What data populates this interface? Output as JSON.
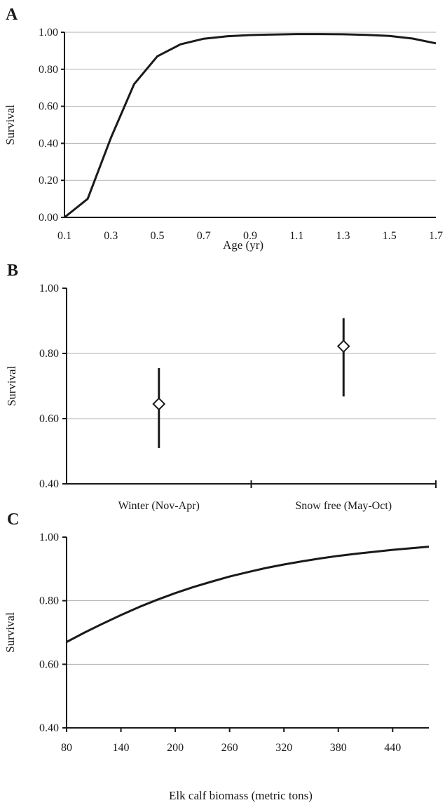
{
  "chart_data": [
    {
      "panel": "A",
      "type": "line",
      "xlabel": "Age (yr)",
      "ylabel": "Survival",
      "xlim": [
        0.1,
        1.7
      ],
      "ylim": [
        0,
        1
      ],
      "x_ticks": [
        "0.1",
        "0.3",
        "0.5",
        "0.7",
        "0.9",
        "1.1",
        "1.3",
        "1.5",
        "1.7"
      ],
      "y_ticks": [
        "0.00",
        "0.20",
        "0.40",
        "0.60",
        "0.80",
        "1.00"
      ],
      "grid": true,
      "x": [
        0.1,
        0.2,
        0.3,
        0.4,
        0.5,
        0.6,
        0.7,
        0.8,
        0.9,
        1.0,
        1.1,
        1.2,
        1.3,
        1.4,
        1.5,
        1.6,
        1.7
      ],
      "values": [
        0.0,
        0.1,
        0.43,
        0.72,
        0.87,
        0.935,
        0.965,
        0.978,
        0.985,
        0.988,
        0.99,
        0.99,
        0.989,
        0.986,
        0.98,
        0.966,
        0.94
      ]
    },
    {
      "panel": "B",
      "type": "scatter",
      "ylabel": "Survival",
      "ylim": [
        0.4,
        1.0
      ],
      "y_ticks": [
        "0.40",
        "0.60",
        "0.80",
        "1.00"
      ],
      "grid": true,
      "categories": [
        "Winter (Nov-Apr)",
        "Snow free (May-Oct)"
      ],
      "values": [
        0.645,
        0.822
      ],
      "lower": [
        0.51,
        0.668
      ],
      "upper": [
        0.755,
        0.908
      ]
    },
    {
      "panel": "C",
      "type": "line",
      "xlabel": "Elk calf biomass (metric tons)",
      "ylabel": "Survival",
      "xlim": [
        80,
        480
      ],
      "ylim": [
        0.4,
        1.0
      ],
      "x_ticks": [
        "80",
        "140",
        "200",
        "260",
        "320",
        "380",
        "440"
      ],
      "y_ticks": [
        "0.40",
        "0.60",
        "0.80",
        "1.00"
      ],
      "grid": true,
      "x": [
        80,
        100,
        120,
        140,
        160,
        180,
        200,
        220,
        240,
        260,
        280,
        300,
        320,
        340,
        360,
        380,
        400,
        420,
        440,
        460,
        480
      ],
      "values": [
        0.67,
        0.7,
        0.728,
        0.755,
        0.78,
        0.803,
        0.824,
        0.843,
        0.86,
        0.876,
        0.89,
        0.903,
        0.914,
        0.924,
        0.933,
        0.941,
        0.948,
        0.954,
        0.96,
        0.965,
        0.97
      ]
    }
  ]
}
